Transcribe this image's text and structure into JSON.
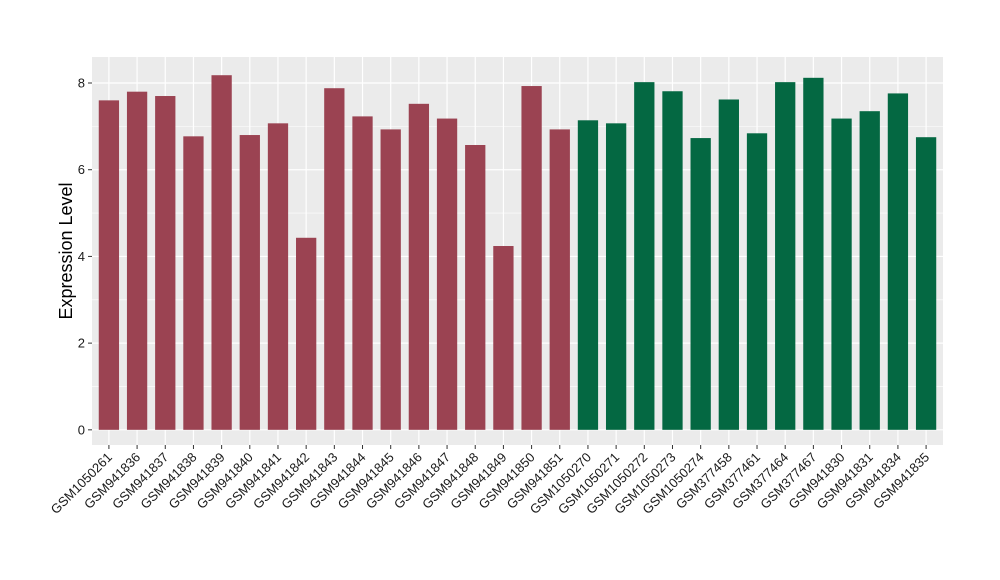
{
  "chart_data": {
    "type": "bar",
    "title": "",
    "xlabel": "",
    "ylabel": "Expression Level",
    "ylim": [
      -0.35,
      8.6
    ],
    "yticks": [
      0,
      2,
      4,
      6,
      8
    ],
    "grid": true,
    "categories": [
      "GSM1050261",
      "GSM941836",
      "GSM941837",
      "GSM941838",
      "GSM941839",
      "GSM941840",
      "GSM941841",
      "GSM941842",
      "GSM941843",
      "GSM941844",
      "GSM941845",
      "GSM941846",
      "GSM941847",
      "GSM941848",
      "GSM941849",
      "GSM941850",
      "GSM941851",
      "GSM1050270",
      "GSM1050271",
      "GSM1050272",
      "GSM1050273",
      "GSM1050274",
      "GSM377458",
      "GSM377461",
      "GSM377464",
      "GSM377467",
      "GSM941830",
      "GSM941831",
      "GSM941834",
      "GSM941835"
    ],
    "values": [
      7.6,
      7.8,
      7.7,
      6.77,
      8.18,
      6.8,
      7.07,
      4.43,
      7.88,
      7.23,
      6.93,
      7.52,
      7.18,
      6.57,
      4.24,
      7.93,
      6.93,
      7.14,
      7.07,
      8.02,
      7.81,
      6.73,
      7.62,
      6.84,
      8.02,
      8.12,
      7.18,
      7.35,
      7.76,
      6.75
    ],
    "bar_colors": [
      "#9b4352",
      "#9b4352",
      "#9b4352",
      "#9b4352",
      "#9b4352",
      "#9b4352",
      "#9b4352",
      "#9b4352",
      "#9b4352",
      "#9b4352",
      "#9b4352",
      "#9b4352",
      "#9b4352",
      "#9b4352",
      "#9b4352",
      "#9b4352",
      "#9b4352",
      "#046842",
      "#046842",
      "#046842",
      "#046842",
      "#046842",
      "#046842",
      "#046842",
      "#046842",
      "#046842",
      "#046842",
      "#046842",
      "#046842",
      "#046842"
    ],
    "panel_background": "#ebebeb",
    "gridline_color": "#ffffff"
  }
}
